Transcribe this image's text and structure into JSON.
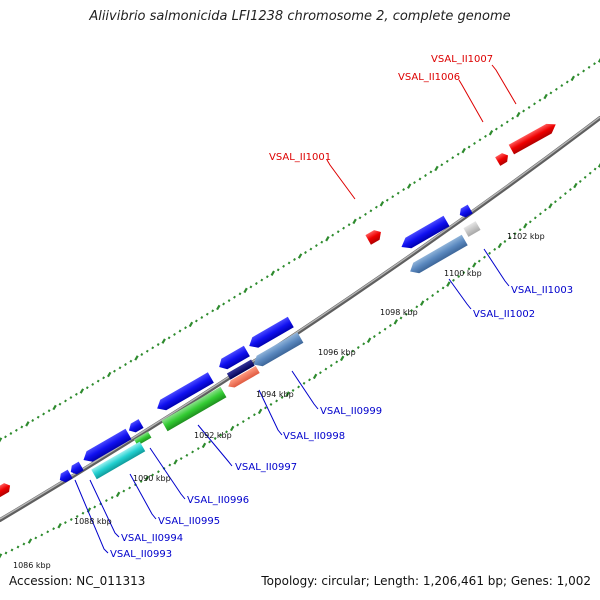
{
  "title": "Aliivibrio salmonicida LFI1238 chromosome 2, complete genome",
  "footer": {
    "accession": "Accession: NC_011313",
    "summary": "Topology: circular; Length: 1,206,461 bp; Genes: 1,002"
  },
  "colors": {
    "backbone": "#8a8a8a",
    "tick_dot": "#2e8b2e",
    "forward_label": "#dd0000",
    "reverse_label": "#0000cc"
  },
  "scale_labels": [
    "1086 kbp",
    "1088 kbp",
    "1090 kbp",
    "1092 kbp",
    "1094 kbp",
    "1096 kbp",
    "1098 kbp",
    "1100 kbp",
    "1102 kbp"
  ],
  "gene_labels": {
    "forward": [
      "VSAL_II1001",
      "VSAL_II1006",
      "VSAL_II1007"
    ],
    "reverse": [
      "VSAL_II0993",
      "VSAL_II0994",
      "VSAL_II0995",
      "VSAL_II0996",
      "VSAL_II0997",
      "VSAL_II0998",
      "VSAL_II0999",
      "VSAL_II1002",
      "VSAL_II1003"
    ]
  }
}
